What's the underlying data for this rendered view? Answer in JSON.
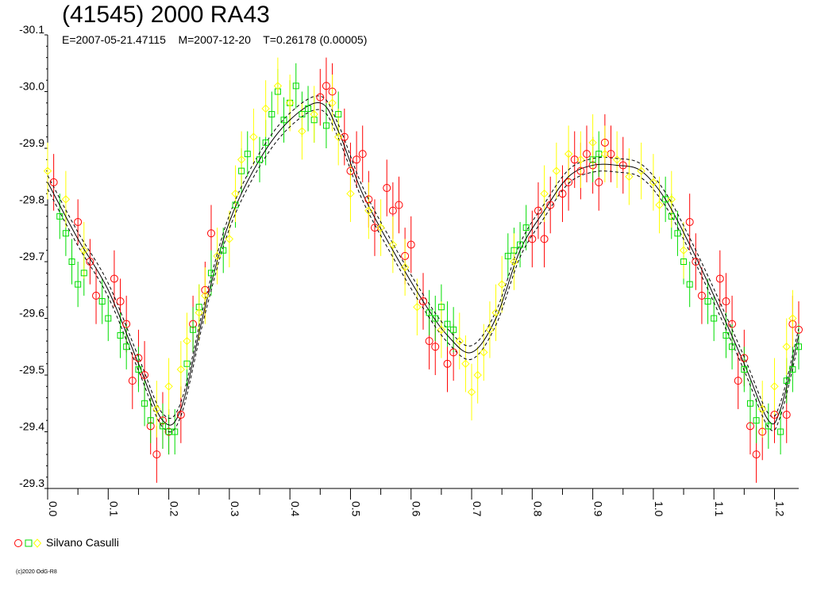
{
  "title": "(41545) 2000 RA43",
  "subtitle": "E=2007-05-21.47115    M=2007-12-20    T=0.26178 (0.00005)",
  "legend": {
    "label": "Silvano Casulli",
    "colors": [
      "#ff0000",
      "#00dd00",
      "#ffff00"
    ]
  },
  "copyright": "(c)2020 OdG-R8",
  "chart_data": {
    "type": "scatter",
    "title": "(41545) 2000 RA43",
    "xlim": [
      0.0,
      1.24
    ],
    "ylim": [
      -29.3,
      -30.1
    ],
    "y_axis_inverted": true,
    "x_tick_labels": [
      "0.0",
      "0.1",
      "0.2",
      "0.3",
      "0.4",
      "0.5",
      "0.6",
      "0.7",
      "0.8",
      "0.9",
      "1.0",
      "1.1",
      "1.2"
    ],
    "y_tick_labels": [
      "-29.3",
      "-29.4",
      "-29.5",
      "-29.6",
      "-29.7",
      "-29.8",
      "-29.9",
      "-30.0",
      "-30.1"
    ],
    "fit_curve": {
      "x": [
        0.0,
        0.05,
        0.1,
        0.15,
        0.19,
        0.22,
        0.26,
        0.3,
        0.35,
        0.4,
        0.45,
        0.48,
        0.52,
        0.57,
        0.62,
        0.66,
        0.7,
        0.74,
        0.78,
        0.82,
        0.86,
        0.9,
        0.94,
        0.98,
        1.02,
        1.06,
        1.1,
        1.15,
        1.19,
        1.21,
        1.24
      ],
      "y": [
        -29.84,
        -29.74,
        -29.65,
        -29.52,
        -29.42,
        -29.44,
        -29.62,
        -29.77,
        -29.88,
        -29.95,
        -29.98,
        -29.93,
        -29.82,
        -29.72,
        -29.63,
        -29.57,
        -29.54,
        -29.6,
        -29.72,
        -29.79,
        -29.85,
        -29.87,
        -29.87,
        -29.86,
        -29.81,
        -29.73,
        -29.64,
        -29.52,
        -29.42,
        -29.44,
        -29.57
      ],
      "band": 0.012
    },
    "series": [
      {
        "color": "#ff0000",
        "marker": "circle",
        "points": [
          [
            0.01,
            -29.84,
            0.05
          ],
          [
            0.05,
            -29.77,
            0.04
          ],
          [
            0.07,
            -29.7,
            0.04
          ],
          [
            0.08,
            -29.64,
            0.05
          ],
          [
            0.11,
            -29.67,
            0.05
          ],
          [
            0.12,
            -29.63,
            0.04
          ],
          [
            0.13,
            -29.59,
            0.05
          ],
          [
            0.14,
            -29.49,
            0.05
          ],
          [
            0.15,
            -29.53,
            0.05
          ],
          [
            0.16,
            -29.5,
            0.06
          ],
          [
            0.17,
            -29.41,
            0.05
          ],
          [
            0.18,
            -29.36,
            0.05
          ],
          [
            0.19,
            -29.42,
            0.05
          ],
          [
            0.2,
            -29.4,
            0.04
          ],
          [
            0.22,
            -29.43,
            0.05
          ],
          [
            0.24,
            -29.59,
            0.05
          ],
          [
            0.26,
            -29.65,
            0.05
          ],
          [
            0.27,
            -29.75,
            0.05
          ],
          [
            0.45,
            -29.99,
            0.05
          ],
          [
            0.46,
            -30.01,
            0.05
          ],
          [
            0.47,
            -30.0,
            0.05
          ],
          [
            0.49,
            -29.92,
            0.05
          ],
          [
            0.5,
            -29.86,
            0.05
          ],
          [
            0.51,
            -29.88,
            0.05
          ],
          [
            0.52,
            -29.89,
            0.05
          ],
          [
            0.53,
            -29.81,
            0.05
          ],
          [
            0.54,
            -29.76,
            0.05
          ],
          [
            0.56,
            -29.83,
            0.05
          ],
          [
            0.57,
            -29.79,
            0.05
          ],
          [
            0.58,
            -29.8,
            0.05
          ],
          [
            0.59,
            -29.71,
            0.05
          ],
          [
            0.6,
            -29.73,
            0.05
          ],
          [
            0.62,
            -29.63,
            0.05
          ],
          [
            0.63,
            -29.56,
            0.05
          ],
          [
            0.64,
            -29.55,
            0.05
          ],
          [
            0.66,
            -29.52,
            0.05
          ],
          [
            0.67,
            -29.54,
            0.05
          ],
          [
            0.8,
            -29.74,
            0.05
          ],
          [
            0.81,
            -29.79,
            0.05
          ],
          [
            0.82,
            -29.74,
            0.05
          ],
          [
            0.83,
            -29.8,
            0.05
          ],
          [
            0.85,
            -29.82,
            0.05
          ],
          [
            0.86,
            -29.84,
            0.05
          ],
          [
            0.87,
            -29.88,
            0.05
          ],
          [
            0.88,
            -29.86,
            0.05
          ],
          [
            0.89,
            -29.89,
            0.05
          ],
          [
            0.9,
            -29.87,
            0.05
          ],
          [
            0.91,
            -29.84,
            0.05
          ],
          [
            0.92,
            -29.91,
            0.05
          ],
          [
            0.93,
            -29.89,
            0.05
          ],
          [
            0.95,
            -29.87,
            0.05
          ],
          [
            1.06,
            -29.77,
            0.05
          ],
          [
            1.07,
            -29.7,
            0.05
          ],
          [
            1.08,
            -29.64,
            0.05
          ],
          [
            1.11,
            -29.67,
            0.05
          ],
          [
            1.12,
            -29.63,
            0.05
          ],
          [
            1.13,
            -29.59,
            0.05
          ],
          [
            1.14,
            -29.49,
            0.05
          ],
          [
            1.15,
            -29.53,
            0.05
          ],
          [
            1.16,
            -29.41,
            0.05
          ],
          [
            1.17,
            -29.36,
            0.05
          ],
          [
            1.18,
            -29.4,
            0.05
          ],
          [
            1.2,
            -29.43,
            0.05
          ],
          [
            1.22,
            -29.43,
            0.05
          ],
          [
            1.23,
            -29.59,
            0.05
          ],
          [
            1.24,
            -29.58,
            0.05
          ]
        ]
      },
      {
        "color": "#00dd00",
        "marker": "square",
        "points": [
          [
            0.02,
            -29.78,
            0.04
          ],
          [
            0.03,
            -29.75,
            0.04
          ],
          [
            0.04,
            -29.7,
            0.04
          ],
          [
            0.05,
            -29.66,
            0.04
          ],
          [
            0.06,
            -29.68,
            0.04
          ],
          [
            0.09,
            -29.63,
            0.04
          ],
          [
            0.1,
            -29.6,
            0.04
          ],
          [
            0.12,
            -29.57,
            0.04
          ],
          [
            0.13,
            -29.55,
            0.04
          ],
          [
            0.15,
            -29.51,
            0.04
          ],
          [
            0.16,
            -29.45,
            0.04
          ],
          [
            0.17,
            -29.42,
            0.04
          ],
          [
            0.19,
            -29.41,
            0.04
          ],
          [
            0.2,
            -29.4,
            0.04
          ],
          [
            0.21,
            -29.4,
            0.04
          ],
          [
            0.23,
            -29.52,
            0.04
          ],
          [
            0.24,
            -29.58,
            0.04
          ],
          [
            0.25,
            -29.62,
            0.04
          ],
          [
            0.27,
            -29.68,
            0.04
          ],
          [
            0.29,
            -29.72,
            0.04
          ],
          [
            0.31,
            -29.8,
            0.04
          ],
          [
            0.32,
            -29.86,
            0.04
          ],
          [
            0.33,
            -29.89,
            0.04
          ],
          [
            0.35,
            -29.88,
            0.04
          ],
          [
            0.36,
            -29.91,
            0.04
          ],
          [
            0.37,
            -29.96,
            0.04
          ],
          [
            0.38,
            -30.0,
            0.04
          ],
          [
            0.39,
            -29.95,
            0.04
          ],
          [
            0.4,
            -29.98,
            0.04
          ],
          [
            0.41,
            -30.01,
            0.04
          ],
          [
            0.42,
            -29.96,
            0.04
          ],
          [
            0.43,
            -29.97,
            0.04
          ],
          [
            0.44,
            -29.95,
            0.04
          ],
          [
            0.46,
            -29.94,
            0.04
          ],
          [
            0.48,
            -29.96,
            0.04
          ],
          [
            0.63,
            -29.61,
            0.04
          ],
          [
            0.64,
            -29.6,
            0.04
          ],
          [
            0.65,
            -29.62,
            0.04
          ],
          [
            0.66,
            -29.59,
            0.04
          ],
          [
            0.67,
            -29.58,
            0.04
          ],
          [
            0.76,
            -29.71,
            0.04
          ],
          [
            0.77,
            -29.72,
            0.04
          ],
          [
            0.78,
            -29.73,
            0.04
          ],
          [
            0.79,
            -29.76,
            0.04
          ],
          [
            0.9,
            -29.88,
            0.04
          ],
          [
            0.91,
            -29.89,
            0.04
          ],
          [
            1.02,
            -29.81,
            0.04
          ],
          [
            1.03,
            -29.78,
            0.04
          ],
          [
            1.04,
            -29.75,
            0.04
          ],
          [
            1.05,
            -29.7,
            0.04
          ],
          [
            1.06,
            -29.66,
            0.04
          ],
          [
            1.09,
            -29.63,
            0.04
          ],
          [
            1.1,
            -29.6,
            0.04
          ],
          [
            1.12,
            -29.57,
            0.04
          ],
          [
            1.13,
            -29.55,
            0.04
          ],
          [
            1.15,
            -29.51,
            0.04
          ],
          [
            1.16,
            -29.45,
            0.04
          ],
          [
            1.17,
            -29.42,
            0.04
          ],
          [
            1.19,
            -29.41,
            0.04
          ],
          [
            1.21,
            -29.4,
            0.04
          ],
          [
            1.22,
            -29.49,
            0.04
          ],
          [
            1.23,
            -29.51,
            0.04
          ],
          [
            1.24,
            -29.55,
            0.04
          ]
        ]
      },
      {
        "color": "#ffff00",
        "marker": "diamond",
        "points": [
          [
            0.0,
            -29.86,
            0.05
          ],
          [
            0.03,
            -29.81,
            0.05
          ],
          [
            0.06,
            -29.72,
            0.05
          ],
          [
            0.18,
            -29.44,
            0.05
          ],
          [
            0.2,
            -29.48,
            0.05
          ],
          [
            0.22,
            -29.51,
            0.05
          ],
          [
            0.23,
            -29.56,
            0.05
          ],
          [
            0.25,
            -29.61,
            0.05
          ],
          [
            0.26,
            -29.64,
            0.05
          ],
          [
            0.28,
            -29.71,
            0.05
          ],
          [
            0.3,
            -29.74,
            0.05
          ],
          [
            0.31,
            -29.82,
            0.05
          ],
          [
            0.32,
            -29.88,
            0.05
          ],
          [
            0.34,
            -29.92,
            0.05
          ],
          [
            0.36,
            -29.97,
            0.05
          ],
          [
            0.38,
            -30.01,
            0.05
          ],
          [
            0.4,
            -29.98,
            0.05
          ],
          [
            0.42,
            -29.93,
            0.05
          ],
          [
            0.44,
            -29.96,
            0.05
          ],
          [
            0.47,
            -29.98,
            0.05
          ],
          [
            0.48,
            -29.92,
            0.05
          ],
          [
            0.5,
            -29.82,
            0.05
          ],
          [
            0.53,
            -29.79,
            0.05
          ],
          [
            0.55,
            -29.76,
            0.05
          ],
          [
            0.57,
            -29.73,
            0.05
          ],
          [
            0.59,
            -29.69,
            0.05
          ],
          [
            0.61,
            -29.62,
            0.05
          ],
          [
            0.65,
            -29.58,
            0.05
          ],
          [
            0.68,
            -29.56,
            0.05
          ],
          [
            0.69,
            -29.52,
            0.05
          ],
          [
            0.7,
            -29.47,
            0.05
          ],
          [
            0.71,
            -29.5,
            0.05
          ],
          [
            0.72,
            -29.54,
            0.05
          ],
          [
            0.73,
            -29.58,
            0.05
          ],
          [
            0.74,
            -29.61,
            0.05
          ],
          [
            0.75,
            -29.66,
            0.05
          ],
          [
            0.77,
            -29.7,
            0.05
          ],
          [
            0.82,
            -29.82,
            0.05
          ],
          [
            0.84,
            -29.86,
            0.05
          ],
          [
            0.86,
            -29.89,
            0.05
          ],
          [
            0.88,
            -29.88,
            0.05
          ],
          [
            0.9,
            -29.91,
            0.05
          ],
          [
            0.92,
            -29.89,
            0.05
          ],
          [
            0.94,
            -29.88,
            0.05
          ],
          [
            0.96,
            -29.85,
            0.05
          ],
          [
            0.98,
            -29.86,
            0.05
          ],
          [
            1.0,
            -29.84,
            0.05
          ],
          [
            1.01,
            -29.8,
            0.05
          ],
          [
            1.03,
            -29.81,
            0.05
          ],
          [
            1.05,
            -29.72,
            0.05
          ],
          [
            1.18,
            -29.44,
            0.05
          ],
          [
            1.2,
            -29.48,
            0.05
          ],
          [
            1.22,
            -29.55,
            0.05
          ],
          [
            1.23,
            -29.6,
            0.05
          ]
        ]
      }
    ]
  }
}
